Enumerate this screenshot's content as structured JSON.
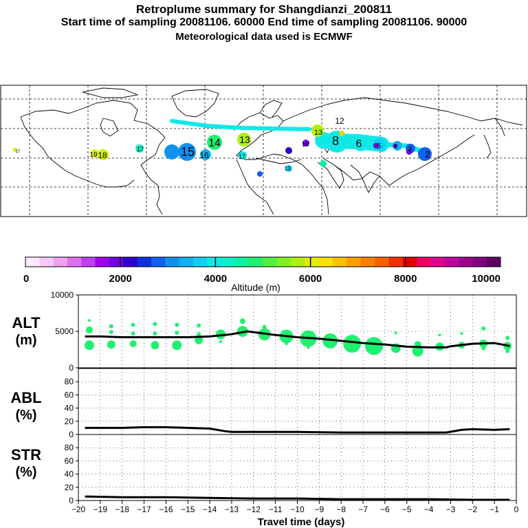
{
  "header": {
    "title": "Retroplume summary for Shangdianzi_200811",
    "sampling": "Start time of sampling 20081106. 60000     End time of sampling 20081106. 90000",
    "met": "Meteorological data used is ECMWF"
  },
  "colorbar": {
    "label": "Altitude (m)",
    "ticks": [
      "0",
      "2000",
      "4000",
      "6000",
      "8000",
      "10000"
    ],
    "colors": [
      "#ffe8ff",
      "#f8c8f8",
      "#f0a0f0",
      "#e070f0",
      "#c040f0",
      "#a000f0",
      "#7000e0",
      "#3000d0",
      "#1030e0",
      "#1060f0",
      "#1090f0",
      "#10b0f0",
      "#10d0f0",
      "#10e8e8",
      "#10f0c8",
      "#10f0a0",
      "#20f070",
      "#50f040",
      "#80f020",
      "#b0f010",
      "#e0f000",
      "#f8e000",
      "#f8c000",
      "#f8a000",
      "#f88000",
      "#f86000",
      "#f03000",
      "#e00000",
      "#f00060",
      "#e00090",
      "#c000a0",
      "#a00090",
      "#800080",
      "#600060"
    ]
  },
  "map": {
    "labels": [
      {
        "t": "2",
        "c": "#1060f0"
      },
      {
        "t": "3",
        "c": "#10b0f0"
      },
      {
        "t": "4",
        "c": "#10d0f0"
      },
      {
        "t": "5",
        "c": "#10e8e8"
      },
      {
        "t": "6",
        "c": "#10e8e8"
      },
      {
        "t": "8",
        "c": "#10e8e8"
      },
      {
        "t": "10",
        "c": "#10e8e8"
      },
      {
        "t": "12",
        "c": "#f0d000"
      },
      {
        "t": "13",
        "c": "#20f070"
      },
      {
        "t": "14",
        "c": "#10f0c8"
      },
      {
        "t": "15",
        "c": "#1090f0"
      },
      {
        "t": "16",
        "c": "#1060f0"
      },
      {
        "t": "17",
        "c": "#b0f010"
      },
      {
        "t": "18",
        "c": "#10e8e8"
      },
      {
        "t": "19",
        "c": "#d0f000"
      },
      {
        "t": "17",
        "c": "#e0f000"
      },
      {
        "t": "17",
        "c": "#10e8e8"
      },
      {
        "t": "13",
        "c": "#10f0c8"
      },
      {
        "t": "13",
        "c": "#10f0a0"
      }
    ]
  },
  "chart_data": [
    {
      "type": "line",
      "panel": "ALT",
      "ylabel_lines": [
        "ALT",
        "(m)"
      ],
      "ylim": [
        0,
        10000
      ],
      "yticks": [
        "10000",
        "5000",
        "0"
      ],
      "x": [
        -19.7,
        -19,
        -18,
        -17,
        -16,
        -15,
        -14,
        -13,
        -12.3,
        -12,
        -11,
        -10,
        -9,
        -8,
        -7,
        -6,
        -5,
        -4,
        -3.2,
        -3,
        -2,
        -1,
        -0.3
      ],
      "y": [
        4300,
        4300,
        4200,
        4200,
        4200,
        4200,
        4300,
        4600,
        5000,
        4900,
        4500,
        4200,
        4000,
        3700,
        3400,
        3200,
        2900,
        2800,
        2800,
        2950,
        3300,
        3400,
        3000
      ],
      "bubbles": [
        {
          "x": -19.5,
          "y": 3100,
          "r": 7
        },
        {
          "x": -19.5,
          "y": 5200,
          "r": 5
        },
        {
          "x": -19.5,
          "y": 6500,
          "r": 2
        },
        {
          "x": -18.5,
          "y": 3200,
          "r": 6
        },
        {
          "x": -18.5,
          "y": 4900,
          "r": 3
        },
        {
          "x": -18.5,
          "y": 5700,
          "r": 3
        },
        {
          "x": -17.5,
          "y": 3300,
          "r": 5
        },
        {
          "x": -17.5,
          "y": 4700,
          "r": 3
        },
        {
          "x": -17.5,
          "y": 5900,
          "r": 3
        },
        {
          "x": -16.5,
          "y": 3100,
          "r": 6
        },
        {
          "x": -16.5,
          "y": 4700,
          "r": 3
        },
        {
          "x": -16.5,
          "y": 6000,
          "r": 3
        },
        {
          "x": -15.5,
          "y": 3100,
          "r": 7
        },
        {
          "x": -15.5,
          "y": 4800,
          "r": 3
        },
        {
          "x": -15.5,
          "y": 5900,
          "r": 3
        },
        {
          "x": -14.5,
          "y": 3800,
          "r": 6
        },
        {
          "x": -14.5,
          "y": 4600,
          "r": 3
        },
        {
          "x": -14.5,
          "y": 5800,
          "r": 3
        },
        {
          "x": -13.5,
          "y": 4600,
          "r": 7
        },
        {
          "x": -13.5,
          "y": 3600,
          "r": 2
        },
        {
          "x": -12.5,
          "y": 5000,
          "r": 8
        },
        {
          "x": -12.5,
          "y": 6400,
          "r": 4
        },
        {
          "x": -11.5,
          "y": 4600,
          "r": 9
        },
        {
          "x": -11.5,
          "y": 5600,
          "r": 3
        },
        {
          "x": -10.5,
          "y": 4300,
          "r": 10
        },
        {
          "x": -10.5,
          "y": 3300,
          "r": 2
        },
        {
          "x": -9.5,
          "y": 4000,
          "r": 12
        },
        {
          "x": -9.5,
          "y": 2800,
          "r": 2
        },
        {
          "x": -8.5,
          "y": 3700,
          "r": 11
        },
        {
          "x": -7.5,
          "y": 3300,
          "r": 13
        },
        {
          "x": -6.5,
          "y": 3000,
          "r": 13
        },
        {
          "x": -5.5,
          "y": 2700,
          "r": 7
        },
        {
          "x": -5.5,
          "y": 4800,
          "r": 2
        },
        {
          "x": -4.5,
          "y": 2300,
          "r": 8
        },
        {
          "x": -4.5,
          "y": 3200,
          "r": 5
        },
        {
          "x": -3.5,
          "y": 2900,
          "r": 6
        },
        {
          "x": -3.5,
          "y": 4500,
          "r": 2
        },
        {
          "x": -2.5,
          "y": 3100,
          "r": 5
        },
        {
          "x": -2.5,
          "y": 4700,
          "r": 2
        },
        {
          "x": -1.5,
          "y": 3300,
          "r": 6
        },
        {
          "x": -1.5,
          "y": 5400,
          "r": 3
        },
        {
          "x": -1.5,
          "y": 2700,
          "r": 3
        },
        {
          "x": -0.4,
          "y": 3000,
          "r": 6
        },
        {
          "x": -0.4,
          "y": 4100,
          "r": 3
        },
        {
          "x": -0.4,
          "y": 2300,
          "r": 3
        }
      ],
      "bubble_color": "#20f070"
    },
    {
      "type": "line",
      "panel": "ABL",
      "ylabel_lines": [
        "ABL",
        "(%)"
      ],
      "ylim": [
        0,
        100
      ],
      "yticks": [
        "80",
        "60",
        "40",
        "20",
        "0"
      ],
      "x": [
        -19.7,
        -18,
        -17,
        -16,
        -15,
        -14,
        -13.3,
        -13,
        -12,
        -10,
        -8,
        -6,
        -4,
        -3.2,
        -2.5,
        -2,
        -1,
        -0.3
      ],
      "y": [
        10,
        10,
        11,
        11,
        10,
        9,
        5,
        4,
        4,
        4,
        3,
        3,
        3,
        3,
        7,
        8,
        7,
        8
      ]
    },
    {
      "type": "line",
      "panel": "STR",
      "ylabel_lines": [
        "STR",
        "(%)"
      ],
      "ylim": [
        0,
        100
      ],
      "yticks": [
        "80",
        "60",
        "40",
        "20",
        "0"
      ],
      "x": [
        -19.7,
        -18,
        -16,
        -14,
        -12,
        -10,
        -8,
        -6,
        -4,
        -2,
        -0.3
      ],
      "y": [
        6,
        5,
        5,
        4,
        3,
        3,
        2,
        2,
        2,
        1,
        1
      ]
    }
  ],
  "xaxis": {
    "label": "Travel time (days)",
    "ticks": [
      "−20",
      "−19",
      "−18",
      "−17",
      "−16",
      "−15",
      "−14",
      "−13",
      "−12",
      "−11",
      "−10",
      "−9",
      "−8",
      "−7",
      "−6",
      "−5",
      "−4",
      "−3",
      "−2",
      "−1",
      "0"
    ]
  }
}
